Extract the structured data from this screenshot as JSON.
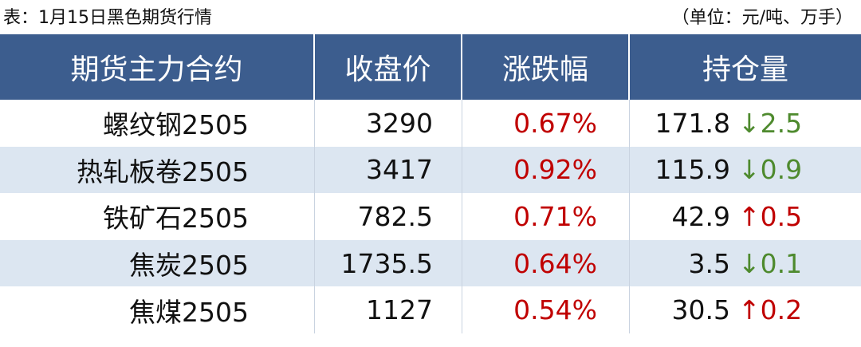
{
  "header": {
    "title": "表：1月15日黑色期货行情",
    "unit": "（单位：元/吨、万手）"
  },
  "table": {
    "columns": [
      "期货主力合约",
      "收盘价",
      "涨跌幅",
      "持仓量"
    ],
    "rows": [
      {
        "contract": "螺纹钢2505",
        "close": "3290",
        "change_pct": "0.67%",
        "position": "171.8",
        "position_change": "↓2.5",
        "change_color": "#4e8a2e"
      },
      {
        "contract": "热轧板卷2505",
        "close": "3417",
        "change_pct": "0.92%",
        "position": "115.9",
        "position_change": "↓0.9",
        "change_color": "#4e8a2e"
      },
      {
        "contract": "铁矿石2505",
        "close": "782.5",
        "change_pct": "0.71%",
        "position": "42.9",
        "position_change": "↑0.5",
        "change_color": "#c00000"
      },
      {
        "contract": "焦炭2505",
        "close": "1735.5",
        "change_pct": "0.64%",
        "position": "3.5",
        "position_change": "↓0.1",
        "change_color": "#4e8a2e"
      },
      {
        "contract": "焦煤2505",
        "close": "1127",
        "change_pct": "0.54%",
        "position": "30.5",
        "position_change": "↑0.2",
        "change_color": "#c00000"
      }
    ],
    "pct_color": "#c00000"
  }
}
